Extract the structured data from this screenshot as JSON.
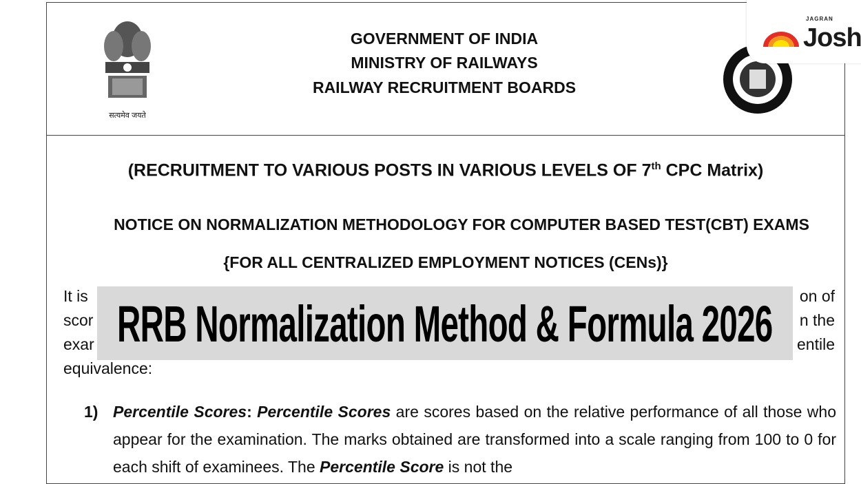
{
  "header": {
    "line1": "GOVERNMENT OF INDIA",
    "line2": "MINISTRY OF RAILWAYS",
    "line3": "RAILWAY RECRUITMENT BOARDS",
    "emblem_motto": "सत्यमेव जयते"
  },
  "titles": {
    "recruitment_pre": "(RECRUITMENT TO VARIOUS POSTS IN VARIOUS LEVELS OF 7",
    "recruitment_sup": "th",
    "recruitment_post": " CPC Matrix)",
    "notice": "NOTICE ON NORMALIZATION METHODOLOGY FOR COMPUTER BASED TEST(CBT) EXAMS",
    "cens": "{FOR ALL CENTRALIZED EMPLOYMENT NOTICES (CENs)}"
  },
  "body": {
    "para_lines": [
      "It is",
      "on of",
      "scor",
      "n the",
      "exar",
      "entile",
      "equivalence:"
    ],
    "item1": {
      "number": "1)",
      "term": "Percentile Scores",
      "term_repeat": "Percentile Scores",
      "text1": " are scores based on the relative performance of all those who appear for the examination. The marks obtained are transformed into a scale ranging from 100 to 0 for each shift of examinees. The ",
      "term2": "Percentile Score",
      "text2": " is not the"
    }
  },
  "banner": {
    "title": "RRB Normalization Method & Formula 2026"
  },
  "logo": {
    "small": "JAGRAN",
    "brand": "Josh"
  },
  "colors": {
    "banner_bg": "#d9d9d9",
    "logo_red": "#e52d27",
    "logo_orange": "#f39422",
    "logo_yellow": "#ffe100"
  }
}
